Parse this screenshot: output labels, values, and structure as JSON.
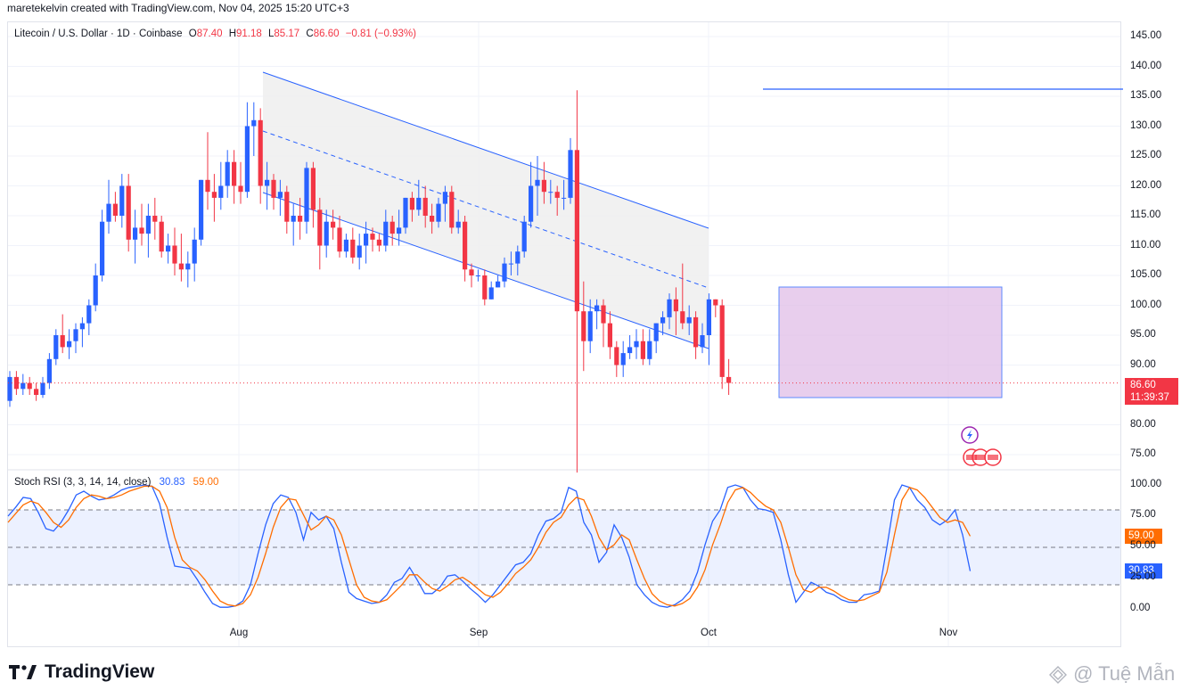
{
  "header": {
    "text": "maretekelvin created with TradingView.com, Nov 04, 2025 15:20 UTC+3"
  },
  "legend": {
    "symbol": "Litecoin / U.S. Dollar · 1D · Coinbase",
    "open_label": "O",
    "open": "87.40",
    "high_label": "H",
    "high": "91.18",
    "low_label": "L",
    "low": "85.17",
    "close_label": "C",
    "close": "86.60",
    "change": "−0.81 (−0.93%)"
  },
  "price_tag": {
    "price": "86.60",
    "countdown": "11:39:37"
  },
  "rsi_legend": {
    "name": "Stoch RSI (3, 3, 14, 14, close)",
    "k": "30.83",
    "d": "59.00"
  },
  "rsi_tags": {
    "d": "59.00",
    "k": "30.83"
  },
  "brand": {
    "name": "TradingView"
  },
  "watermark": {
    "text": "@ Tuệ Mẫn"
  },
  "colors": {
    "up": "#2962ff",
    "down": "#f23645",
    "k_line": "#2962ff",
    "d_line": "#ff6d00",
    "channel_fill": "#efefef",
    "box_fill": "#e1bee7"
  },
  "chart_data": [
    {
      "type": "candlestick",
      "title": "Litecoin / U.S. Dollar · 1D · Coinbase",
      "ylim": [
        72,
        147
      ],
      "y_ticks": [
        "145.00",
        "140.00",
        "135.00",
        "130.00",
        "125.00",
        "120.00",
        "115.00",
        "110.00",
        "105.00",
        "100.00",
        "95.00",
        "90.00",
        "80.00",
        "75.00"
      ],
      "x_ticks": [
        "Aug",
        "Sep",
        "Oct",
        "Nov"
      ],
      "candles": [
        [
          84,
          88,
          83,
          89
        ],
        [
          88,
          86,
          85,
          89
        ],
        [
          86,
          87,
          85,
          88.5
        ],
        [
          87,
          86,
          85,
          88
        ],
        [
          86,
          85,
          84,
          87
        ],
        [
          85,
          87,
          84.5,
          88
        ],
        [
          87,
          91,
          86,
          92
        ],
        [
          91,
          95,
          90,
          96
        ],
        [
          95,
          93,
          92,
          98.5
        ],
        [
          93,
          94,
          91,
          96
        ],
        [
          94,
          96,
          92,
          97
        ],
        [
          96,
          97,
          93,
          98
        ],
        [
          97,
          100,
          95,
          101
        ],
        [
          100,
          105,
          99,
          107
        ],
        [
          105,
          114,
          104,
          116
        ],
        [
          114,
          117,
          112,
          121
        ],
        [
          117,
          115,
          114,
          119
        ],
        [
          115,
          120,
          113,
          122
        ],
        [
          120,
          111,
          109,
          122
        ],
        [
          111,
          113,
          107,
          116
        ],
        [
          113,
          112,
          110,
          117
        ],
        [
          112,
          115,
          108,
          117
        ],
        [
          115,
          114,
          111,
          118
        ],
        [
          114,
          109,
          108,
          115
        ],
        [
          109,
          110,
          107,
          112
        ],
        [
          110,
          107,
          105,
          113
        ],
        [
          107,
          106,
          104,
          112
        ],
        [
          106,
          107,
          103,
          109
        ],
        [
          107,
          111,
          104,
          113
        ],
        [
          111,
          121,
          110,
          121
        ],
        [
          121,
          119,
          116,
          129
        ],
        [
          119,
          118,
          114,
          122
        ],
        [
          118,
          120,
          116,
          124
        ],
        [
          120,
          124,
          118,
          126
        ],
        [
          124,
          120,
          117,
          126
        ],
        [
          120,
          119,
          117,
          124
        ],
        [
          119,
          130,
          118,
          134
        ],
        [
          130,
          131,
          125,
          134
        ],
        [
          131,
          120,
          117,
          133
        ],
        [
          120,
          121,
          116,
          124
        ],
        [
          121,
          118,
          116,
          122
        ],
        [
          118,
          119,
          115,
          121
        ],
        [
          119,
          114,
          112,
          120
        ],
        [
          114,
          115,
          110,
          117
        ],
        [
          115,
          114,
          111,
          118
        ],
        [
          114,
          123,
          112,
          124
        ],
        [
          123,
          116,
          113,
          124
        ],
        [
          116,
          110,
          106,
          118
        ],
        [
          110,
          114,
          108,
          116
        ],
        [
          114,
          113,
          111,
          116
        ],
        [
          113,
          109,
          108,
          115
        ],
        [
          109,
          111,
          108,
          112
        ],
        [
          111,
          108,
          107,
          113
        ],
        [
          108,
          110,
          106,
          112
        ],
        [
          110,
          112,
          107,
          114
        ],
        [
          112,
          111,
          109,
          113
        ],
        [
          111,
          110,
          109,
          112
        ],
        [
          110,
          114,
          109,
          116
        ],
        [
          114,
          112,
          110,
          115
        ],
        [
          112,
          113,
          110,
          116
        ],
        [
          113,
          118,
          112,
          118
        ],
        [
          118,
          116,
          114,
          119
        ],
        [
          116,
          118,
          115,
          121
        ],
        [
          118,
          115,
          113,
          120
        ],
        [
          115,
          114,
          112,
          117
        ],
        [
          114,
          117,
          113,
          118
        ],
        [
          117,
          119,
          114,
          120
        ],
        [
          119,
          113,
          112,
          120
        ],
        [
          113,
          114,
          112,
          116
        ],
        [
          114,
          106,
          104,
          115
        ],
        [
          106,
          105,
          103,
          107
        ],
        [
          105,
          105,
          104,
          106
        ],
        [
          105,
          101,
          100,
          106
        ],
        [
          101,
          103,
          101,
          104
        ],
        [
          103,
          104,
          103,
          105
        ],
        [
          104,
          107,
          103,
          108
        ],
        [
          107,
          107,
          105,
          109
        ],
        [
          107,
          109,
          105,
          110
        ],
        [
          109,
          114,
          108,
          115
        ],
        [
          114,
          120,
          113,
          124
        ],
        [
          120,
          121,
          115,
          125
        ],
        [
          121,
          119,
          117,
          124
        ],
        [
          119,
          119,
          117,
          121
        ],
        [
          119,
          118,
          115,
          120
        ],
        [
          118,
          118,
          116,
          121
        ],
        [
          118,
          126,
          117,
          128
        ],
        [
          126,
          99,
          72,
          136
        ],
        [
          99,
          94,
          89,
          104
        ],
        [
          94,
          99,
          92,
          101
        ],
        [
          99,
          100,
          96,
          101
        ],
        [
          100,
          97,
          93,
          101
        ],
        [
          97,
          93,
          91,
          99
        ],
        [
          93,
          90,
          88,
          94
        ],
        [
          90,
          92,
          88,
          94
        ],
        [
          92,
          93,
          91,
          95
        ],
        [
          93,
          94,
          91,
          96
        ],
        [
          94,
          91,
          90,
          96
        ],
        [
          91,
          94,
          90,
          96
        ],
        [
          94,
          97,
          92,
          97
        ],
        [
          97,
          98,
          95,
          99
        ],
        [
          98,
          101,
          96,
          102
        ],
        [
          101,
          99,
          95,
          103
        ],
        [
          99,
          97,
          96,
          107
        ],
        [
          97,
          98,
          95,
          100
        ],
        [
          98,
          93,
          91,
          99
        ],
        [
          93,
          95,
          92,
          97
        ],
        [
          95,
          101,
          90,
          102
        ],
        [
          101,
          100,
          98,
          101
        ],
        [
          100,
          88,
          86,
          101
        ],
        [
          88,
          87,
          85,
          91
        ]
      ]
    },
    {
      "type": "line",
      "title": "Stoch RSI (3, 3, 14, 14, close)",
      "ylim": [
        -15,
        105
      ],
      "y_ticks": [
        "100.00",
        "75.00",
        "50.00",
        "25.00",
        "0.00"
      ],
      "series": [
        {
          "name": "K",
          "values": [
            75,
            82,
            90,
            89,
            78,
            65,
            63,
            70,
            80,
            92,
            95,
            91,
            88,
            89,
            92,
            96,
            98,
            99,
            100,
            99,
            85,
            58,
            35,
            34,
            33,
            24,
            14,
            5,
            2,
            2,
            3,
            7,
            20,
            45,
            68,
            85,
            92,
            90,
            78,
            56,
            78,
            72,
            75,
            65,
            38,
            14,
            9,
            7,
            5,
            6,
            12,
            22,
            25,
            34,
            24,
            13,
            13,
            18,
            27,
            28,
            23,
            17,
            12,
            6,
            12,
            20,
            28,
            36,
            38,
            45,
            60,
            71,
            73,
            78,
            98,
            95,
            70,
            60,
            38,
            46,
            68,
            58,
            42,
            20,
            12,
            6,
            3,
            2,
            4,
            8,
            15,
            30,
            52,
            71,
            80,
            98,
            100,
            98,
            88,
            81,
            80,
            78,
            56,
            28,
            6,
            14,
            22,
            19,
            14,
            12,
            8,
            6,
            6,
            12,
            13,
            15,
            50,
            88,
            100,
            98,
            88,
            82,
            72,
            68,
            72,
            80,
            60,
            31
          ]
        },
        {
          "name": "D",
          "values": [
            70,
            77,
            84,
            87,
            85,
            78,
            70,
            66,
            72,
            82,
            89,
            92,
            91,
            89,
            90,
            92,
            95,
            97,
            99,
            99,
            95,
            82,
            58,
            40,
            34,
            31,
            24,
            15,
            7,
            4,
            3,
            5,
            12,
            26,
            45,
            66,
            82,
            89,
            88,
            76,
            64,
            68,
            75,
            72,
            60,
            40,
            20,
            10,
            7,
            6,
            8,
            14,
            20,
            28,
            28,
            22,
            17,
            15,
            19,
            24,
            26,
            22,
            17,
            12,
            10,
            14,
            21,
            29,
            34,
            40,
            50,
            62,
            70,
            74,
            84,
            90,
            88,
            75,
            58,
            48,
            52,
            60,
            56,
            40,
            25,
            13,
            7,
            4,
            3,
            5,
            9,
            18,
            32,
            52,
            68,
            86,
            96,
            98,
            94,
            88,
            83,
            80,
            70,
            50,
            28,
            16,
            14,
            18,
            18,
            15,
            11,
            8,
            7,
            8,
            11,
            14,
            30,
            60,
            88,
            98,
            96,
            90,
            82,
            74,
            70,
            72,
            70,
            59
          ]
        }
      ]
    }
  ]
}
